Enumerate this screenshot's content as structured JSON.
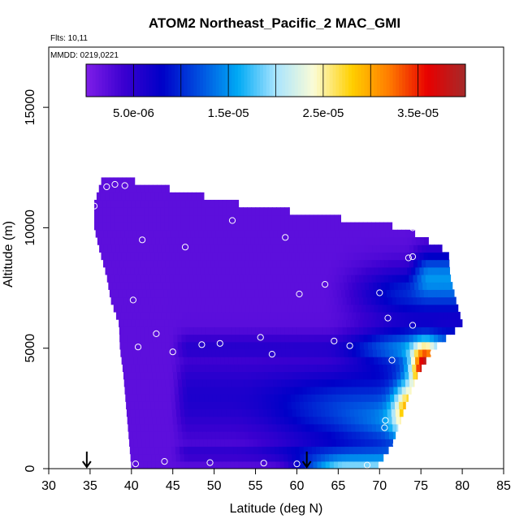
{
  "chart_data": {
    "type": "heatmap",
    "title": "ATOM2 Northeast_Pacific_2 MAC_GMI",
    "notes": [
      "Flts: 10,11",
      "MMDD: 0219,0221"
    ],
    "xlabel": "Latitude (deg N)",
    "ylabel": "Altitude (m)",
    "xlim": [
      30,
      85
    ],
    "ylim": [
      0,
      17500
    ],
    "x_ticks": [
      "30",
      "35",
      "40",
      "45",
      "50",
      "55",
      "60",
      "65",
      "70",
      "75",
      "80",
      "85"
    ],
    "y_ticks": [
      "0",
      "5000",
      "10000",
      "15000"
    ],
    "colorbar": {
      "range": [
        0,
        4e-05
      ],
      "tick_values": [
        5e-06,
        1.5e-05,
        2.5e-05,
        3.5e-05
      ],
      "tick_labels": [
        "5.0e-06",
        "1.5e-05",
        "2.5e-05",
        "3.5e-05"
      ],
      "colors": [
        "#7f1ee8",
        "#3a00d0",
        "#0000c8",
        "#0050e0",
        "#00aaf5",
        "#a8e4ff",
        "#fbfcd6",
        "#ffd000",
        "#ff7a00",
        "#e80000",
        "#a52a2a"
      ]
    },
    "grid": false,
    "markers": {
      "style": "open circle",
      "points": [
        [
          37.0,
          11700
        ],
        [
          38.0,
          11800
        ],
        [
          39.2,
          11750
        ],
        [
          35.5,
          10900
        ],
        [
          41.3,
          9500
        ],
        [
          46.5,
          9200
        ],
        [
          52.2,
          10300
        ],
        [
          58.6,
          9600
        ],
        [
          68.0,
          10650
        ],
        [
          74.0,
          10000
        ],
        [
          77.0,
          9600
        ],
        [
          78.2,
          9550
        ],
        [
          73.5,
          8750
        ],
        [
          74.0,
          8800
        ],
        [
          63.4,
          7650
        ],
        [
          60.3,
          7250
        ],
        [
          40.2,
          7000
        ],
        [
          70.0,
          7300
        ],
        [
          71.0,
          6250
        ],
        [
          74.0,
          5950
        ],
        [
          43.0,
          5600
        ],
        [
          55.6,
          5450
        ],
        [
          64.5,
          5300
        ],
        [
          66.4,
          5100
        ],
        [
          40.8,
          5050
        ],
        [
          45.0,
          4850
        ],
        [
          48.5,
          5150
        ],
        [
          50.7,
          5200
        ],
        [
          57.0,
          4750
        ],
        [
          71.5,
          4500
        ],
        [
          76.5,
          4800
        ],
        [
          70.7,
          2000
        ],
        [
          70.6,
          1700
        ],
        [
          72.0,
          1000
        ],
        [
          40.5,
          200
        ],
        [
          44.0,
          300
        ],
        [
          49.5,
          250
        ],
        [
          56.0,
          230
        ],
        [
          60.0,
          200
        ],
        [
          68.5,
          150
        ]
      ]
    },
    "arrows": [
      34.6,
      61.2
    ]
  }
}
